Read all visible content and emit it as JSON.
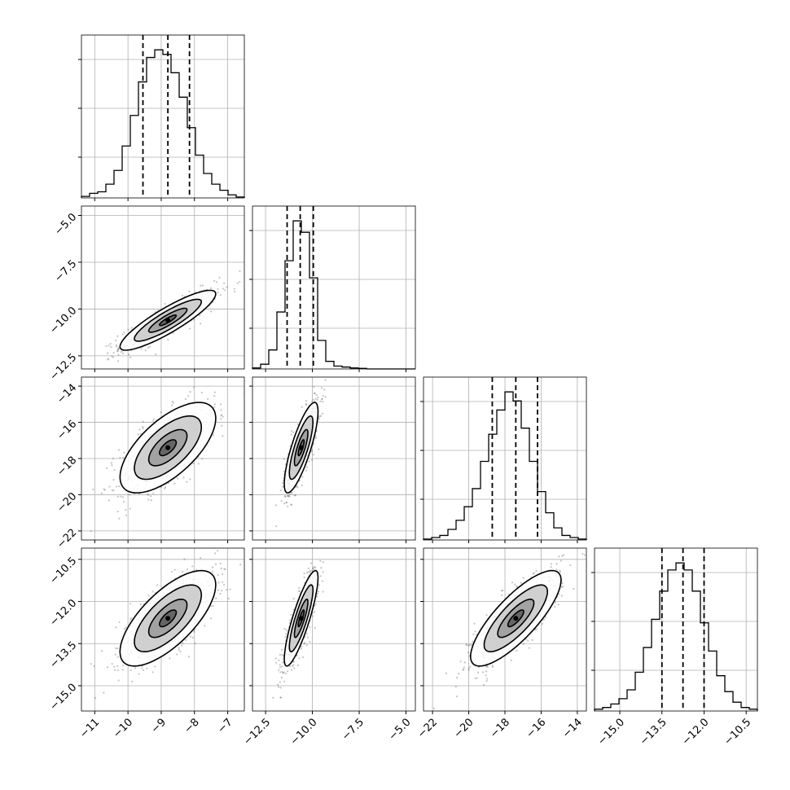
{
  "chart_data": {
    "type": "corner",
    "parameters": [
      {
        "range": [
          -11.4,
          -6.5
        ],
        "ticks": [
          -11,
          -10,
          -9,
          -8,
          -7
        ],
        "tick_labels": [
          "−11",
          "−10",
          "−9",
          "−8",
          "−7"
        ],
        "quantiles": [
          -9.55,
          -8.8,
          -8.15
        ],
        "hist_counts": [
          0.5,
          1.5,
          2,
          4.5,
          9,
          17,
          27,
          38,
          46,
          48.5,
          47,
          41,
          33,
          23,
          14,
          8,
          4.5,
          2.5,
          1,
          0.3
        ]
      },
      {
        "range": [
          -13.2,
          -4.5
        ],
        "ticks": [
          -12.5,
          -10.0,
          -7.5,
          -5.0
        ],
        "tick_labels": [
          "−12.5",
          "−10.0",
          "−7.5",
          "−5.0"
        ],
        "quantiles": [
          -11.35,
          -10.65,
          -9.95
        ],
        "hist_counts": [
          0.5,
          2.5,
          10,
          30,
          57,
          78,
          72,
          48,
          15,
          4,
          1.5,
          1,
          0.5,
          0.3,
          0,
          0,
          0,
          0,
          0,
          0
        ]
      },
      {
        "range": [
          -22.5,
          -13.5
        ],
        "ticks": [
          -22,
          -20,
          -18,
          -16,
          -14
        ],
        "tick_labels": [
          "−22",
          "−20",
          "−18",
          "−16",
          "−14"
        ],
        "quantiles": [
          -18.7,
          -17.4,
          -16.2
        ],
        "hist_counts": [
          0.3,
          0.8,
          1.5,
          3.5,
          6.5,
          11,
          17,
          26,
          35,
          43,
          49,
          46,
          37,
          26,
          16,
          9,
          4,
          1.5,
          0.8,
          0.3
        ]
      },
      {
        "range": [
          -15.9,
          -10.1
        ],
        "ticks": [
          -15.0,
          -13.5,
          -12.0,
          -10.5
        ],
        "tick_labels": [
          "−15.0",
          "−13.5",
          "−12.0",
          "−10.5"
        ],
        "quantiles": [
          -13.5,
          -12.75,
          -12.0
        ],
        "hist_counts": [
          0.5,
          1,
          2,
          3.5,
          6,
          11,
          18,
          26,
          34,
          40,
          42,
          40,
          34,
          25,
          17,
          10,
          5.5,
          2.5,
          1,
          0.5
        ]
      }
    ],
    "pairs": [
      {
        "row": 1,
        "col": 0,
        "mean": [
          -8.8,
          -10.6
        ],
        "sx": 0.72,
        "sy": 0.8,
        "rho": 0.88
      },
      {
        "row": 2,
        "col": 0,
        "mean": [
          -8.8,
          -17.4
        ],
        "sx": 0.72,
        "sy": 1.25,
        "rho": 0.65
      },
      {
        "row": 2,
        "col": 1,
        "mean": [
          -10.6,
          -17.4
        ],
        "sx": 0.45,
        "sy": 1.25,
        "rho": 0.8
      },
      {
        "row": 3,
        "col": 0,
        "mean": [
          -8.8,
          -12.6
        ],
        "sx": 0.72,
        "sy": 0.85,
        "rho": 0.7
      },
      {
        "row": 3,
        "col": 1,
        "mean": [
          -10.6,
          -12.6
        ],
        "sx": 0.45,
        "sy": 0.85,
        "rho": 0.85
      },
      {
        "row": 3,
        "col": 2,
        "mean": [
          -17.4,
          -12.6
        ],
        "sx": 1.25,
        "sy": 0.85,
        "rho": 0.8
      }
    ],
    "grid": true
  }
}
